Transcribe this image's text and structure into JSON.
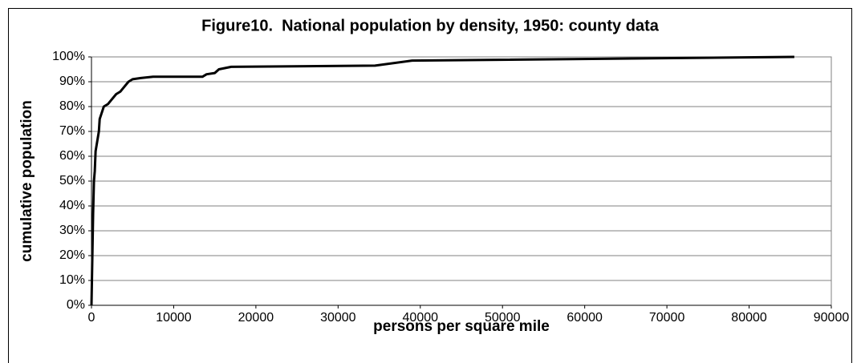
{
  "chart_data": {
    "type": "line",
    "title": "Figure10.  National population by density, 1950: county data",
    "x_label": "persons per square mile",
    "y_label": "cumulative population",
    "series": [
      {
        "color": "#000000",
        "x": [
          0,
          200,
          300,
          400,
          500,
          700,
          900,
          1000,
          1200,
          1500,
          2000,
          2500,
          3000,
          3500,
          4000,
          4500,
          5000,
          6000,
          7500,
          13500,
          14000,
          15000,
          15500,
          17000,
          34500,
          39000,
          85500
        ],
        "values": [
          0,
          37,
          50,
          54,
          62,
          66,
          70,
          75,
          77,
          80,
          81,
          83,
          85,
          86,
          88,
          90,
          91,
          91.5,
          92,
          92,
          93,
          93.5,
          95,
          96,
          96.5,
          98.5,
          100
        ]
      }
    ],
    "xlim": [
      0,
      90000
    ],
    "xticks": [
      0,
      10000,
      20000,
      30000,
      40000,
      50000,
      60000,
      70000,
      80000,
      90000
    ],
    "ylim": [
      0,
      100
    ],
    "yticks": [
      {
        "value": 0,
        "label": "0%"
      },
      {
        "value": 10,
        "label": "10%"
      },
      {
        "value": 20,
        "label": "20%"
      },
      {
        "value": 30,
        "label": "30%"
      },
      {
        "value": 40,
        "label": "40%"
      },
      {
        "value": 50,
        "label": "50%"
      },
      {
        "value": 60,
        "label": "60%"
      },
      {
        "value": 70,
        "label": "70%"
      },
      {
        "value": 80,
        "label": "80%"
      },
      {
        "value": 90,
        "label": "90%"
      },
      {
        "value": 100,
        "label": "100%"
      }
    ],
    "grid": true
  }
}
